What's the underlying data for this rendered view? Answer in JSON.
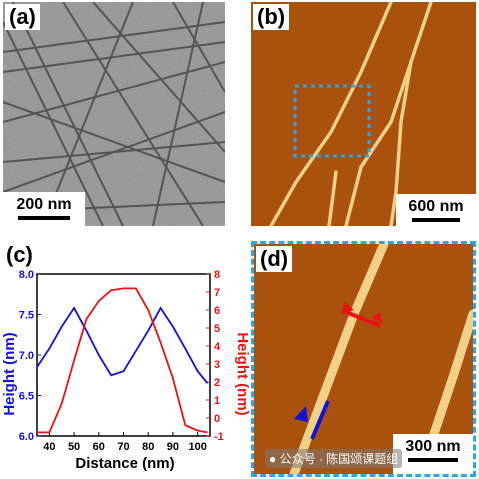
{
  "panels": {
    "a": {
      "label": "(a)",
      "scale": "200 nm"
    },
    "b": {
      "label": "(b)",
      "scale": "600 nm"
    },
    "c": {
      "label": "(c)"
    },
    "d": {
      "label": "(d)",
      "scale": "300 nm"
    }
  },
  "watermark": "公众号 · 陈国颂课题组",
  "colors": {
    "blue": "#1111dd",
    "red": "#ee1111",
    "box": "#2aa7e8",
    "afm_bg": "#a8520e",
    "fiber": "#f3d088"
  },
  "chart_data": {
    "type": "line",
    "xlabel": "Distance (nm)",
    "ylabel_left": "Height (nm)",
    "ylabel_right": "Height (nm)",
    "xlim": [
      35,
      105
    ],
    "ylim_left": [
      6.0,
      8.0
    ],
    "ylim_right": [
      -1,
      8
    ],
    "x_ticks": [
      "40",
      "50",
      "60",
      "70",
      "80",
      "90",
      "100"
    ],
    "y_left_ticks": [
      "6.0",
      "6.5",
      "7.0",
      "7.5",
      "8.0"
    ],
    "y_right_ticks": [
      "-1",
      "0",
      "1",
      "2",
      "3",
      "4",
      "5",
      "6",
      "7",
      "8"
    ],
    "series": [
      {
        "axis": "left",
        "color": "#1111dd",
        "x": [
          35,
          40,
          45,
          50,
          55,
          60,
          65,
          70,
          75,
          80,
          85,
          90,
          95,
          100,
          104
        ],
        "y": [
          6.85,
          7.08,
          7.35,
          7.58,
          7.3,
          7.0,
          6.75,
          6.8,
          7.05,
          7.3,
          7.58,
          7.35,
          7.08,
          6.8,
          6.65
        ]
      },
      {
        "axis": "right",
        "color": "#ee1111",
        "x": [
          35,
          40,
          45,
          50,
          55,
          60,
          65,
          70,
          75,
          80,
          85,
          90,
          95,
          100,
          104
        ],
        "y": [
          -0.8,
          -0.8,
          0.8,
          3.2,
          5.5,
          6.5,
          7.1,
          7.2,
          7.2,
          6.0,
          4.2,
          2.2,
          -0.4,
          -0.7,
          -0.8
        ]
      }
    ]
  }
}
